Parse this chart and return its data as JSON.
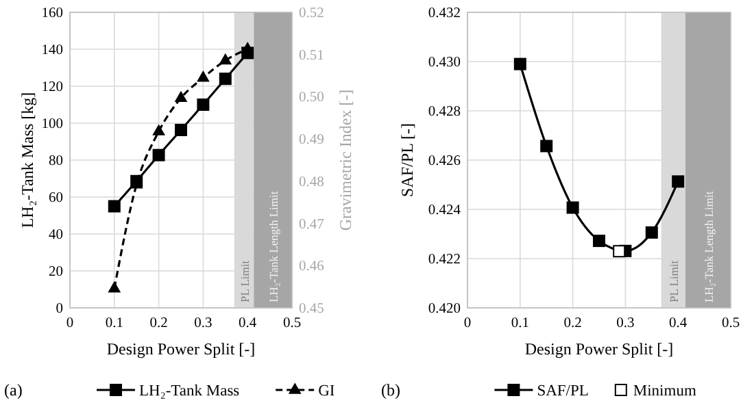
{
  "chart_data": [
    {
      "type": "line",
      "xlabel": "Design Power Split [-]",
      "ylabel": "LH₂-Tank Mass [kg]",
      "y2label": "Gravimetric Index [-]",
      "annotations": [
        "(a)"
      ],
      "xlim": [
        0,
        0.5
      ],
      "xticks": [
        0,
        0.1,
        0.2,
        0.3,
        0.4,
        0.5
      ],
      "ylim": [
        0,
        160
      ],
      "yticks": [
        0,
        20,
        40,
        60,
        80,
        100,
        120,
        140,
        160
      ],
      "y2lim": [
        0.45,
        0.52
      ],
      "y2ticks": [
        0.45,
        0.46,
        0.47,
        0.48,
        0.49,
        {
          "value": 0.5,
          "label": "0.50"
        },
        0.51,
        0.52
      ],
      "grid": true,
      "legend": "bottom",
      "bands": [
        {
          "axis": "x",
          "from": 0.37,
          "to": 0.414,
          "label": "PL Limit",
          "color": "#d9d9d9"
        },
        {
          "axis": "x",
          "from": 0.414,
          "to": 0.5,
          "label": "LH₂-Tank Length Limit",
          "color": "#a6a6a6"
        }
      ],
      "series": [
        {
          "name": "LH₂-Tank Mass",
          "type": "line",
          "color": "#000000",
          "marker": "square",
          "line_style": "solid",
          "x": [
            0.1,
            0.15,
            0.2,
            0.25,
            0.3,
            0.35,
            0.4
          ],
          "values": [
            55,
            68.6,
            82.7,
            96.3,
            110,
            124,
            138
          ]
        },
        {
          "name": "GI",
          "type": "line",
          "axis": "y2",
          "color": "#000000",
          "marker": "triangle",
          "line_style": "dashed",
          "x": [
            0.1,
            0.15,
            0.2,
            0.25,
            0.3,
            0.35,
            0.4
          ],
          "values": [
            0.4546,
            0.4792,
            0.4918,
            0.4997,
            0.5045,
            0.5086,
            0.5113
          ]
        }
      ]
    },
    {
      "type": "line",
      "xlabel": "Design Power Split [-]",
      "ylabel": "SAF/PL [-]",
      "annotations": [
        "(b)"
      ],
      "xlim": [
        0,
        0.5
      ],
      "xticks": [
        0,
        0.1,
        0.2,
        0.3,
        0.4,
        0.5
      ],
      "ylim": [
        0.42,
        0.432
      ],
      "yticks": [
        {
          "value": 0.42,
          "label": "0.420"
        },
        {
          "value": 0.422,
          "label": "0.422"
        },
        {
          "value": 0.424,
          "label": "0.424"
        },
        {
          "value": 0.426,
          "label": "0.426"
        },
        {
          "value": 0.428,
          "label": "0.428"
        },
        {
          "value": 0.43,
          "label": "0.430"
        },
        {
          "value": 0.432,
          "label": "0.432"
        }
      ],
      "grid": true,
      "legend": "bottom",
      "bands": [
        {
          "axis": "x",
          "from": 0.368,
          "to": 0.414,
          "label": "PL Limit",
          "color": "#d9d9d9"
        },
        {
          "axis": "x",
          "from": 0.414,
          "to": 0.5,
          "label": "LH₂-Tank Length Limit",
          "color": "#a6a6a6"
        }
      ],
      "series": [
        {
          "name": "SAF/PL",
          "type": "line",
          "color": "#000000",
          "marker": "square",
          "line_style": "solid",
          "x": [
            0.1,
            0.15,
            0.2,
            0.25,
            0.3,
            0.35,
            0.4
          ],
          "values": [
            0.4299,
            0.42657,
            0.42407,
            0.42272,
            0.42231,
            0.42306,
            0.42513
          ]
        },
        {
          "name": "Minimum",
          "type": "scatter",
          "color": "#ffffff",
          "marker": "square",
          "x": [
            0.288
          ],
          "values": [
            0.4223
          ]
        }
      ]
    }
  ]
}
